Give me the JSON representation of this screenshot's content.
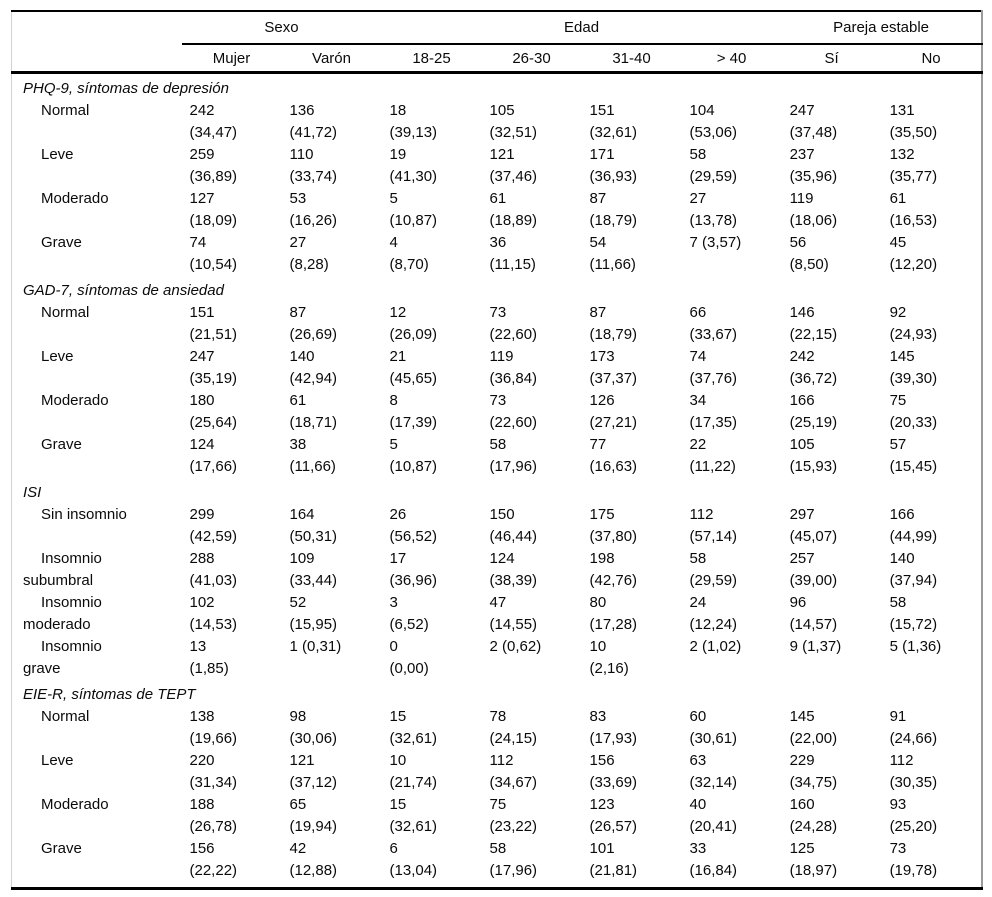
{
  "table": {
    "col_groups": [
      {
        "label": "Sexo",
        "span": 2
      },
      {
        "label": "Edad",
        "span": 4
      },
      {
        "label": "Pareja estable",
        "span": 2
      }
    ],
    "columns": [
      "Mujer",
      "Varón",
      "18-25",
      "26-30",
      "31-40",
      "> 40",
      "Sí",
      "No"
    ],
    "sections": [
      {
        "title": "PHQ-9, síntomas de depresión",
        "rows": [
          {
            "label": "Normal",
            "cells": [
              "242\n(34,47)",
              "136\n(41,72)",
              "18\n(39,13)",
              "105\n(32,51)",
              "151\n(32,61)",
              "104\n(53,06)",
              "247\n(37,48)",
              "131\n(35,50)"
            ]
          },
          {
            "label": "Leve",
            "cells": [
              "259\n(36,89)",
              "110\n(33,74)",
              "19\n(41,30)",
              "121\n(37,46)",
              "171\n(36,93)",
              "58\n(29,59)",
              "237\n(35,96)",
              "132\n(35,77)"
            ]
          },
          {
            "label": "Moderado",
            "cells": [
              "127\n(18,09)",
              "53\n(16,26)",
              "5\n(10,87)",
              "61\n(18,89)",
              "87\n(18,79)",
              "27\n(13,78)",
              "119\n(18,06)",
              "61\n(16,53)"
            ]
          },
          {
            "label": "Grave",
            "cells": [
              "74\n(10,54)",
              "27\n(8,28)",
              "4\n(8,70)",
              "36\n(11,15)",
              "54\n(11,66)",
              "7 (3,57)",
              "56\n(8,50)",
              "45\n(12,20)"
            ]
          }
        ]
      },
      {
        "title": "GAD-7, síntomas de ansiedad",
        "rows": [
          {
            "label": "Normal",
            "cells": [
              "151\n(21,51)",
              "87\n(26,69)",
              "12\n(26,09)",
              "73\n(22,60)",
              "87\n(18,79)",
              "66\n(33,67)",
              "146\n(22,15)",
              "92\n(24,93)"
            ]
          },
          {
            "label": "Leve",
            "cells": [
              "247\n(35,19)",
              "140\n(42,94)",
              "21\n(45,65)",
              "119\n(36,84)",
              "173\n(37,37)",
              "74\n(37,76)",
              "242\n(36,72)",
              "145\n(39,30)"
            ]
          },
          {
            "label": "Moderado",
            "cells": [
              "180\n(25,64)",
              "61\n(18,71)",
              "8\n(17,39)",
              "73\n(22,60)",
              "126\n(27,21)",
              "34\n(17,35)",
              "166\n(25,19)",
              "75\n(20,33)"
            ]
          },
          {
            "label": "Grave",
            "cells": [
              "124\n(17,66)",
              "38\n(11,66)",
              "5\n(10,87)",
              "58\n(17,96)",
              "77\n(16,63)",
              "22\n(11,22)",
              "105\n(15,93)",
              "57\n(15,45)"
            ]
          }
        ]
      },
      {
        "title": "ISI",
        "rows": [
          {
            "label": "Sin insomnio",
            "cells": [
              "299\n(42,59)",
              "164\n(50,31)",
              "26\n(56,52)",
              "150\n(46,44)",
              "175\n(37,80)",
              "112\n(57,14)",
              "297\n(45,07)",
              "166\n(44,99)"
            ]
          },
          {
            "label": "Insomnio\nsubumbral",
            "cells": [
              "288\n(41,03)",
              "109\n(33,44)",
              "17\n(36,96)",
              "124\n(38,39)",
              "198\n(42,76)",
              "58\n(29,59)",
              "257\n(39,00)",
              "140\n(37,94)"
            ]
          },
          {
            "label": "Insomnio\nmoderado",
            "cells": [
              "102\n(14,53)",
              "52\n(15,95)",
              "3\n(6,52)",
              "47\n(14,55)",
              "80\n(17,28)",
              "24\n(12,24)",
              "96\n(14,57)",
              "58\n(15,72)"
            ]
          },
          {
            "label": "Insomnio\ngrave",
            "cells": [
              "13\n(1,85)",
              "1 (0,31)",
              "0\n(0,00)",
              "2 (0,62)",
              "10\n(2,16)",
              "2 (1,02)",
              "9 (1,37)",
              "5 (1,36)"
            ]
          }
        ]
      },
      {
        "title": "EIE-R, síntomas de TEPT",
        "rows": [
          {
            "label": "Normal",
            "cells": [
              "138\n(19,66)",
              "98\n(30,06)",
              "15\n(32,61)",
              "78\n(24,15)",
              "83\n(17,93)",
              "60\n(30,61)",
              "145\n(22,00)",
              "91\n(24,66)"
            ]
          },
          {
            "label": "Leve",
            "cells": [
              "220\n(31,34)",
              "121\n(37,12)",
              "10\n(21,74)",
              "112\n(34,67)",
              "156\n(33,69)",
              "63\n(32,14)",
              "229\n(34,75)",
              "112\n(30,35)"
            ]
          },
          {
            "label": "Moderado",
            "cells": [
              "188\n(26,78)",
              "65\n(19,94)",
              "15\n(32,61)",
              "75\n(23,22)",
              "123\n(26,57)",
              "40\n(20,41)",
              "160\n(24,28)",
              "93\n(25,20)"
            ]
          },
          {
            "label": "Grave",
            "cells": [
              "156\n(22,22)",
              "42\n(12,88)",
              "6\n(13,04)",
              "58\n(17,96)",
              "101\n(21,81)",
              "33\n(16,84)",
              "125\n(18,97)",
              "73\n(19,78)"
            ]
          }
        ]
      }
    ]
  }
}
